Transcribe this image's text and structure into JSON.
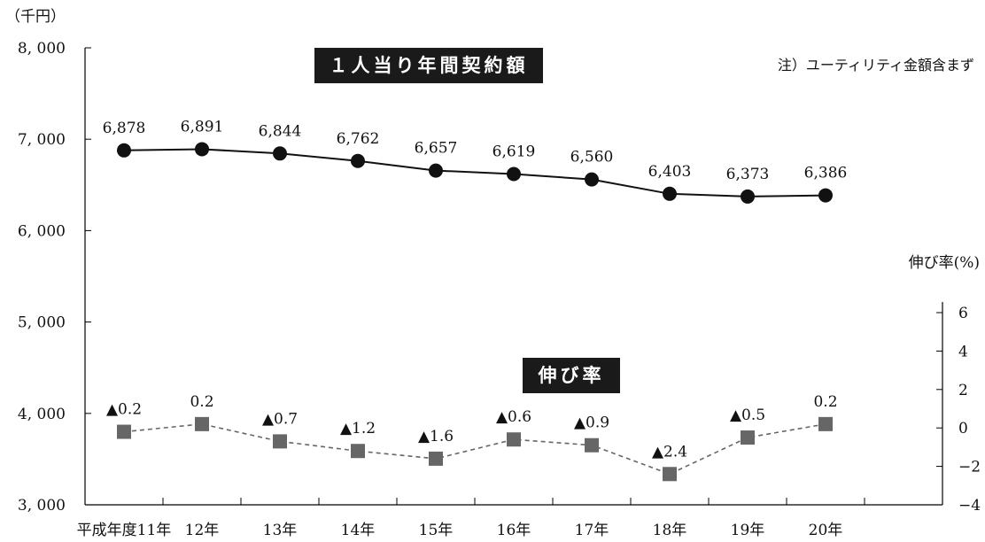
{
  "chart_data": [
    {
      "type": "line",
      "title": "１人当り年間契約額",
      "unit_label": "（千円）",
      "note": "注）ユーティリティ金額含まず",
      "categories": [
        "平成年度11年",
        "12年",
        "13年",
        "14年",
        "15年",
        "16年",
        "17年",
        "18年",
        "19年",
        "20年"
      ],
      "series": [
        {
          "values": [
            6878,
            6891,
            6844,
            6762,
            6657,
            6619,
            6560,
            6403,
            6373,
            6386
          ],
          "labels": [
            "6,878",
            "6,891",
            "6,844",
            "6,762",
            "6,657",
            "6,619",
            "6,560",
            "6,403",
            "6,373",
            "6,386"
          ],
          "marker": "circle",
          "color": "#111111"
        }
      ],
      "ylim": [
        3000,
        8000
      ],
      "yticks": [
        3000,
        4000,
        5000,
        6000,
        7000,
        8000
      ],
      "ytick_labels": [
        "3, 000",
        "4, 000",
        "5, 000",
        "6, 000",
        "7, 000",
        "8, 000"
      ]
    },
    {
      "type": "line",
      "title": "伸び率",
      "ylabel": "伸び率(%)",
      "categories": [
        "平成年度11年",
        "12年",
        "13年",
        "14年",
        "15年",
        "16年",
        "17年",
        "18年",
        "19年",
        "20年"
      ],
      "series": [
        {
          "values": [
            -0.2,
            0.2,
            -0.7,
            -1.2,
            -1.6,
            -0.6,
            -0.9,
            -2.4,
            -0.5,
            0.2
          ],
          "labels": [
            "0.2",
            "0.2",
            "0.7",
            "1.2",
            "1.6",
            "0.6",
            "0.9",
            "2.4",
            "0.5",
            "0.2"
          ],
          "negative_prefix": "▲",
          "marker": "square",
          "line_style": "dashed",
          "color": "#666666"
        }
      ],
      "ylim": [
        -4,
        6
      ],
      "yticks": [
        -4,
        -2,
        0,
        2,
        4,
        6
      ],
      "ytick_labels": [
        "−4",
        "−2",
        "0",
        "2",
        "4",
        "6"
      ]
    }
  ]
}
